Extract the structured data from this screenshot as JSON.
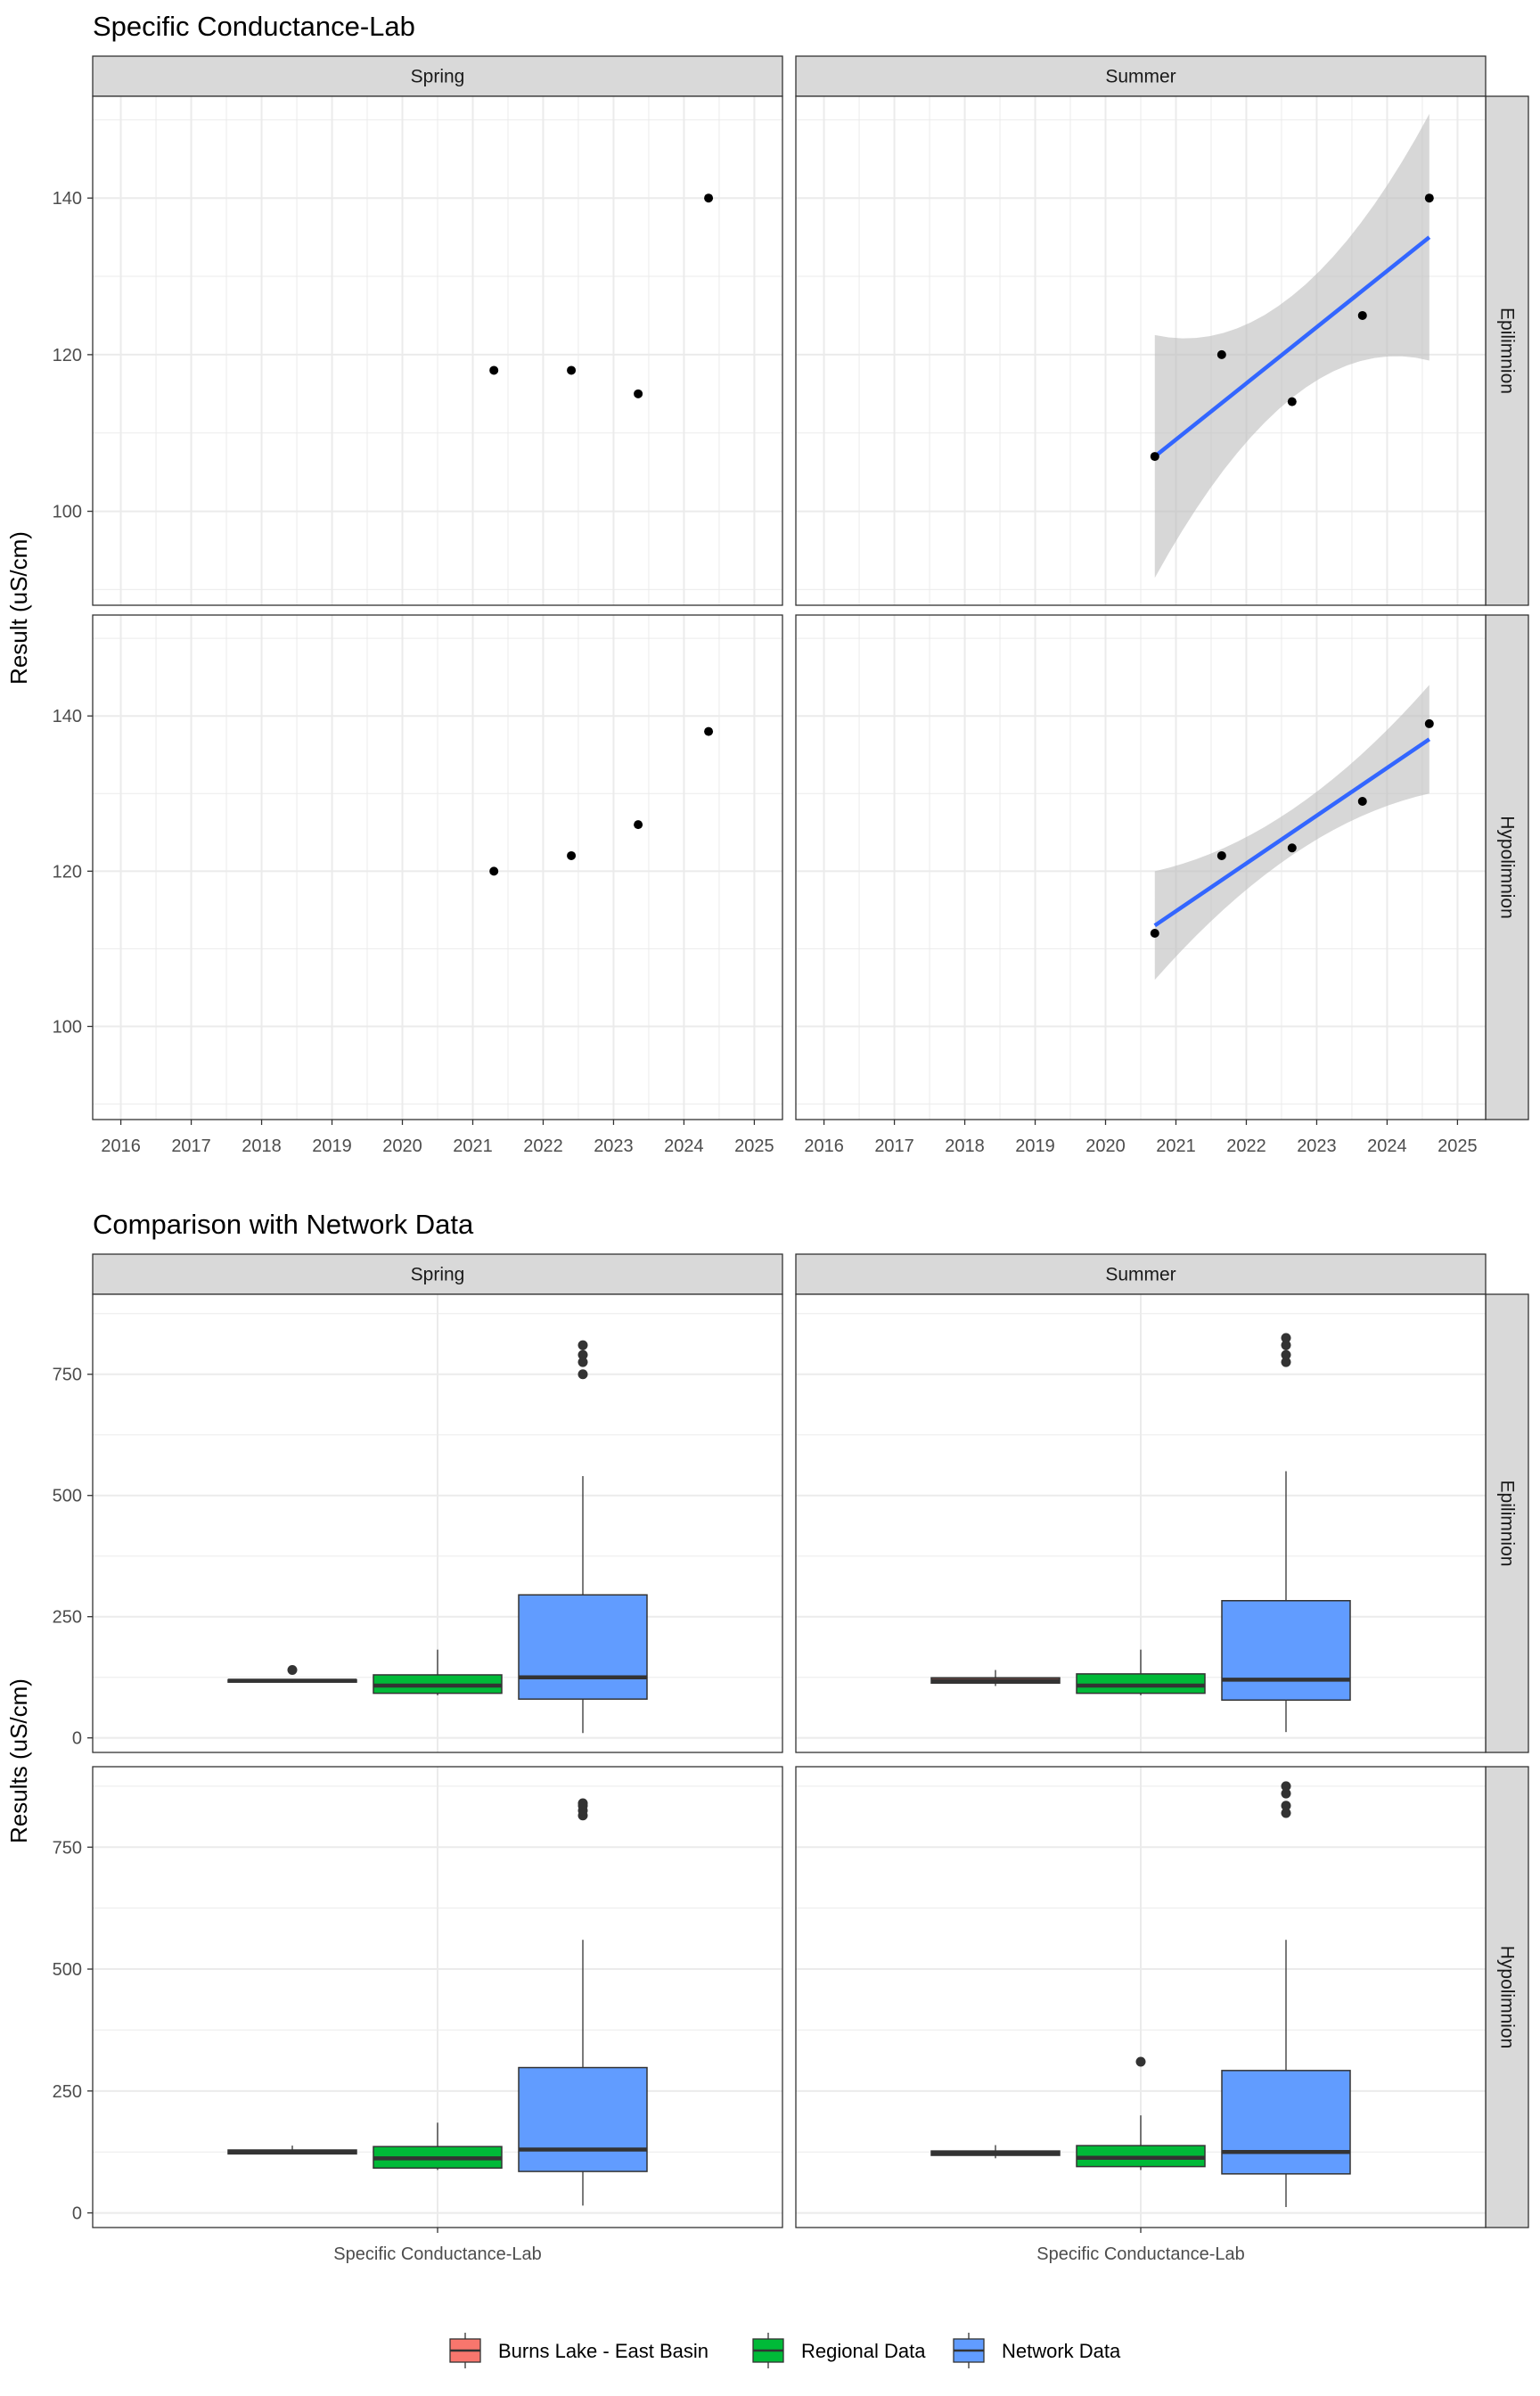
{
  "colors": {
    "burns": "#F8766D",
    "regional": "#00BA38",
    "network": "#619CFF",
    "trend": "#3366FF",
    "ribbon": "#BDBDBD",
    "strip": "#D9D9D9",
    "grid": "#EBEBEB",
    "point": "#000000"
  },
  "chart_data": [
    {
      "type": "scatter",
      "title": "Specific Conductance-Lab",
      "ylabel": "Result (uS/cm)",
      "xlabel": "",
      "col_strips": [
        "Spring",
        "Summer"
      ],
      "row_strips": [
        "Epilimnion",
        "Hypolimnion"
      ],
      "x_ticks": [
        "2016",
        "2017",
        "2018",
        "2019",
        "2020",
        "2021",
        "2022",
        "2023",
        "2024",
        "2025"
      ],
      "y_ticks": [
        "100",
        "120",
        "140"
      ],
      "xlim": [
        2015.6,
        2025.4
      ],
      "ylim": [
        88,
        153
      ],
      "grid": true,
      "panels": [
        {
          "col": "Spring",
          "row": "Epilimnion",
          "points": [
            {
              "x": 2021.3,
              "y": 118
            },
            {
              "x": 2022.4,
              "y": 118
            },
            {
              "x": 2023.35,
              "y": 115
            },
            {
              "x": 2024.35,
              "y": 140
            }
          ]
        },
        {
          "col": "Summer",
          "row": "Epilimnion",
          "points": [
            {
              "x": 2020.7,
              "y": 107
            },
            {
              "x": 2021.65,
              "y": 120
            },
            {
              "x": 2022.65,
              "y": 114
            },
            {
              "x": 2023.65,
              "y": 125
            },
            {
              "x": 2024.6,
              "y": 140
            }
          ],
          "trend": {
            "x": [
              2020.7,
              2024.6
            ],
            "y": [
              107,
              135
            ],
            "lower": [
              92,
              119.5
            ],
            "upper": [
              123,
              151
            ]
          }
        },
        {
          "col": "Spring",
          "row": "Hypolimnion",
          "points": [
            {
              "x": 2021.3,
              "y": 120
            },
            {
              "x": 2022.4,
              "y": 122
            },
            {
              "x": 2023.35,
              "y": 126
            },
            {
              "x": 2024.35,
              "y": 138
            }
          ]
        },
        {
          "col": "Summer",
          "row": "Hypolimnion",
          "points": [
            {
              "x": 2020.7,
              "y": 112
            },
            {
              "x": 2021.65,
              "y": 122
            },
            {
              "x": 2022.65,
              "y": 123
            },
            {
              "x": 2023.65,
              "y": 129
            },
            {
              "x": 2024.6,
              "y": 139
            }
          ],
          "trend": {
            "x": [
              2020.7,
              2024.6
            ],
            "y": [
              113,
              137
            ],
            "lower": [
              106,
              130
            ],
            "upper": [
              120,
              144
            ]
          }
        }
      ]
    },
    {
      "type": "box",
      "title": "Comparison with Network Data",
      "ylabel": "Results (uS/cm)",
      "xlabel": "",
      "category": "Specific Conductance-Lab",
      "col_strips": [
        "Spring",
        "Summer"
      ],
      "row_strips": [
        "Epilimnion",
        "Hypolimnion"
      ],
      "y_ticks": [
        "0",
        "250",
        "500",
        "750"
      ],
      "ylim": [
        -30,
        915
      ],
      "legend": {
        "position": "bottom",
        "entries": [
          "Burns Lake - East Basin",
          "Regional Data",
          "Network Data"
        ]
      },
      "panels": [
        {
          "col": "Spring",
          "row": "Epilimnion",
          "boxes": [
            {
              "group": "Burns Lake - East Basin",
              "q1": 115,
              "median": 118,
              "q3": 120,
              "lo": 114,
              "hi": 121,
              "outliers": [
                140
              ]
            },
            {
              "group": "Regional Data",
              "q1": 92,
              "median": 108,
              "q3": 130,
              "lo": 88,
              "hi": 182,
              "outliers": []
            },
            {
              "group": "Network Data",
              "q1": 80,
              "median": 125,
              "q3": 295,
              "lo": 10,
              "hi": 540,
              "outliers": [
                750,
                775,
                790,
                810
              ]
            }
          ]
        },
        {
          "col": "Summer",
          "row": "Epilimnion",
          "boxes": [
            {
              "group": "Burns Lake - East Basin",
              "q1": 113,
              "median": 118,
              "q3": 124,
              "lo": 107,
              "hi": 140,
              "outliers": []
            },
            {
              "group": "Regional Data",
              "q1": 92,
              "median": 108,
              "q3": 132,
              "lo": 88,
              "hi": 182,
              "outliers": []
            },
            {
              "group": "Network Data",
              "q1": 78,
              "median": 120,
              "q3": 283,
              "lo": 12,
              "hi": 550,
              "outliers": [
                775,
                790,
                810,
                825
              ]
            }
          ]
        },
        {
          "col": "Spring",
          "row": "Hypolimnion",
          "boxes": [
            {
              "group": "Burns Lake - East Basin",
              "q1": 121,
              "median": 124,
              "q3": 129,
              "lo": 120,
              "hi": 138,
              "outliers": []
            },
            {
              "group": "Regional Data",
              "q1": 92,
              "median": 112,
              "q3": 136,
              "lo": 88,
              "hi": 185,
              "outliers": []
            },
            {
              "group": "Network Data",
              "q1": 85,
              "median": 130,
              "q3": 298,
              "lo": 15,
              "hi": 560,
              "outliers": [
                815,
                825,
                835,
                840
              ]
            }
          ]
        },
        {
          "col": "Summer",
          "row": "Hypolimnion",
          "boxes": [
            {
              "group": "Burns Lake - East Basin",
              "q1": 118,
              "median": 123,
              "q3": 127,
              "lo": 112,
              "hi": 139,
              "outliers": []
            },
            {
              "group": "Regional Data",
              "q1": 95,
              "median": 113,
              "q3": 138,
              "lo": 88,
              "hi": 200,
              "outliers": [
                310
              ]
            },
            {
              "group": "Network Data",
              "q1": 80,
              "median": 125,
              "q3": 292,
              "lo": 12,
              "hi": 560,
              "outliers": [
                820,
                835,
                860,
                875
              ]
            }
          ]
        }
      ]
    }
  ]
}
